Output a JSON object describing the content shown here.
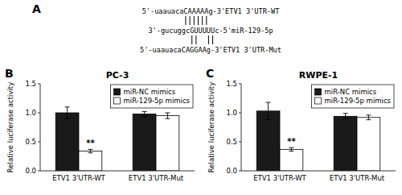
{
  "chart_data": [
    {
      "type": "sequence_alignment",
      "panel_label": "A",
      "annotations": [
        "5'-uaauacaCAAAAAg-3'ETV1 3'UTR-WT",
        "3'-gucuggcGUUUUUc-5'miR-129-5p",
        "5'-uaauacaCAGGAAg-3'ETV1 3'UTR-Mut"
      ]
    },
    {
      "type": "bar",
      "panel_label": "B",
      "title": "PC-3",
      "y_label": "Relative luciferase activity",
      "categories": [
        "ETV1 3'UTR-WT",
        "ETV1 3'UTR-Mut"
      ],
      "series": [
        {
          "name": "miR-NC mimics",
          "color": "#1a1a1a",
          "values": [
            1.0,
            0.98
          ],
          "errors": [
            0.1,
            0.04
          ]
        },
        {
          "name": "miR-129-5p mimics",
          "color": "#ffffff",
          "values": [
            0.34,
            0.95
          ],
          "errors": [
            0.03,
            0.05
          ]
        }
      ],
      "annotations": [
        {
          "text": "**",
          "category": "ETV1 3'UTR-WT",
          "series": "miR-129-5p mimics"
        }
      ],
      "ylim": [
        0,
        1.5
      ],
      "yticks": [
        {
          "value": 0,
          "label": "0.0"
        },
        0.5,
        {
          "value": 1,
          "label": "1.0"
        },
        1.5
      ],
      "grid": false,
      "legend": "upper right"
    },
    {
      "type": "bar",
      "panel_label": "C",
      "title": "RWPE-1",
      "y_label": "Relative luciferase activity",
      "categories": [
        "ETV1 3'UTR-WT",
        "ETV1 3'UTR-Mut"
      ],
      "series": [
        {
          "name": "miR-NC mimics",
          "color": "#1a1a1a",
          "values": [
            1.03,
            0.94
          ],
          "errors": [
            0.15,
            0.05
          ]
        },
        {
          "name": "miR-129-5p mimics",
          "color": "#ffffff",
          "values": [
            0.37,
            0.92
          ],
          "errors": [
            0.03,
            0.04
          ]
        }
      ],
      "annotations": [
        {
          "text": "**",
          "category": "ETV1 3'UTR-WT",
          "series": "miR-129-5p mimics"
        }
      ],
      "ylim": [
        0,
        1.5
      ],
      "yticks": [
        {
          "value": 0,
          "label": "0.0"
        },
        0.5,
        {
          "value": 1,
          "label": "1.0"
        },
        1.5
      ],
      "grid": false,
      "legend": "upper right"
    }
  ]
}
